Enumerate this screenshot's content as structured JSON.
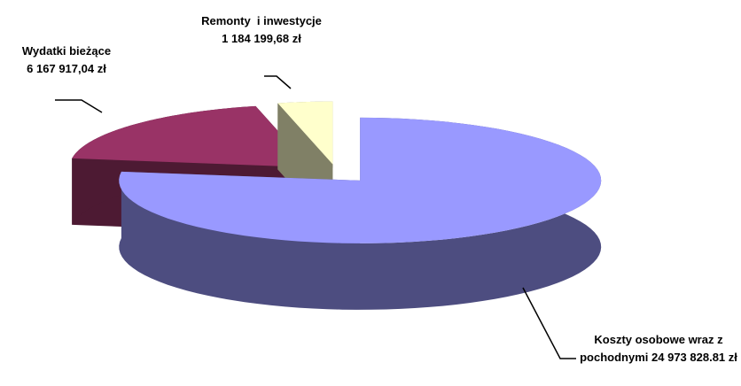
{
  "chart_data": {
    "type": "pie",
    "categories": [
      "Koszty osobowe wraz z pochodnymi",
      "Wydatki bieżące",
      "Remonty  i inwestycje"
    ],
    "values": [
      24973828.81,
      6167917.04,
      1184199.68
    ],
    "value_labels": [
      "24 973 828.81 zł",
      "6 167 917,04 zł",
      "1 184 199,68 zł"
    ],
    "colors": [
      "#9999ff",
      "#993366",
      "#ffffcc"
    ]
  }
}
